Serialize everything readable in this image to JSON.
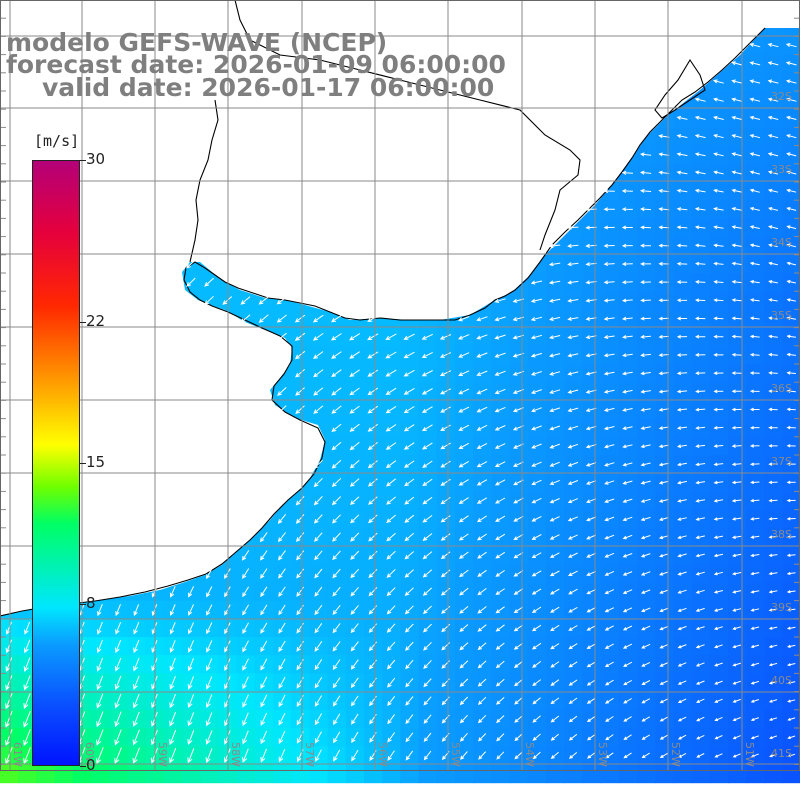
{
  "title": {
    "line1": "modelo GEFS-WAVE (NCEP)",
    "line2": "forecast date: 2026-01-09 06:00:00",
    "line3": "valid date: 2026-01-17 06:00:00"
  },
  "colorbar": {
    "unit": "[m/s]",
    "min": 0,
    "max": 30,
    "tick_labels": [
      "30",
      "22",
      "15",
      "8",
      "0"
    ],
    "tick_values": [
      30,
      22,
      15,
      8,
      0
    ]
  },
  "map": {
    "lat_labels": [
      "32S",
      "33S",
      "34S",
      "35S",
      "36S",
      "37S",
      "38S",
      "39S",
      "40S",
      "41S"
    ],
    "lon_labels": [
      "61W",
      "60W",
      "59W",
      "58W",
      "57W",
      "56W",
      "55W",
      "54W",
      "53W",
      "52W",
      "51W"
    ],
    "land_color": "#ffffff",
    "grid_color": "#8a8a8a",
    "coast_color": "#000000",
    "arrow_color": "#ffffff",
    "field": "10 m wind speed and direction over ocean"
  }
}
